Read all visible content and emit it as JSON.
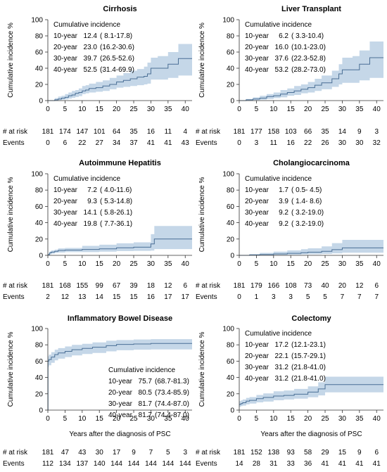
{
  "colors": {
    "band": "#c5d7e8",
    "curve": "#4a6f95"
  },
  "risk_row_label": "# at risk",
  "events_row_label": "Events",
  "chart_data": [
    {
      "type": "line",
      "title": "Cirrhosis",
      "ylabel": "Cumulative incidence %",
      "xlabel": "",
      "xlim": [
        0,
        42
      ],
      "ylim": [
        0,
        100
      ],
      "xticks": [
        "0",
        "5",
        "10",
        "15",
        "20",
        "25",
        "30",
        "35",
        "40"
      ],
      "yticks": [
        "0",
        "20",
        "40",
        "60",
        "80",
        "100"
      ],
      "incidence_header": "Cumulative incidence",
      "incidence_pos": "upper-left",
      "incidence": [
        {
          "label": "10-year",
          "value": "12.4",
          "ci": "( 8.1-17.8)"
        },
        {
          "label": "20-year",
          "value": "23.0",
          "ci": "(16.2-30.6)"
        },
        {
          "label": "30-year",
          "value": "39.7",
          "ci": "(26.5-52.6)"
        },
        {
          "label": "40-year",
          "value": "52.5",
          "ci": "(31.4-69.9)"
        }
      ],
      "at_risk": [
        "181",
        "174",
        "147",
        "101",
        "64",
        "35",
        "16",
        "11",
        "4"
      ],
      "events": [
        "0",
        "6",
        "22",
        "27",
        "34",
        "37",
        "41",
        "41",
        "43"
      ],
      "x": [
        0,
        2,
        3,
        4,
        5,
        6,
        7,
        8,
        9,
        10,
        11,
        12,
        14,
        16,
        18,
        20,
        22,
        24,
        26,
        28,
        29,
        30,
        32,
        35,
        38,
        42
      ],
      "y": [
        0,
        1,
        2,
        3,
        4,
        6,
        7,
        9,
        10,
        12,
        13,
        15,
        16,
        18,
        20,
        23,
        25,
        27,
        29,
        30,
        33,
        40,
        40,
        45,
        52,
        52
      ],
      "lower": [
        0,
        0,
        0.5,
        1,
        1.5,
        2.5,
        3.5,
        4.5,
        5.5,
        8,
        9,
        10,
        11,
        12,
        14,
        16,
        17,
        18,
        19,
        20,
        21,
        26,
        26,
        28,
        31,
        31
      ],
      "upper": [
        0,
        3,
        5,
        6,
        8,
        10,
        12,
        13,
        15,
        18,
        19,
        21,
        23,
        25,
        28,
        31,
        34,
        37,
        39,
        42,
        47,
        53,
        55,
        60,
        70,
        70
      ]
    },
    {
      "type": "line",
      "title": "Liver Transplant",
      "ylabel": "Cumulative incidence %",
      "xlabel": "",
      "xlim": [
        0,
        42
      ],
      "ylim": [
        0,
        100
      ],
      "xticks": [
        "0",
        "5",
        "10",
        "15",
        "20",
        "25",
        "30",
        "35",
        "40"
      ],
      "yticks": [
        "0",
        "20",
        "40",
        "60",
        "80",
        "100"
      ],
      "incidence_header": "Cumulative incidence",
      "incidence_pos": "upper-left",
      "incidence": [
        {
          "label": "10-year",
          "value": "6.2",
          "ci": "( 3.3-10.4)"
        },
        {
          "label": "20-year",
          "value": "16.0",
          "ci": "(10.1-23.0)"
        },
        {
          "label": "30-year",
          "value": "37.6",
          "ci": "(22.3-52.8)"
        },
        {
          "label": "40-year",
          "value": "53.2",
          "ci": "(28.2-73.0)"
        }
      ],
      "at_risk": [
        "181",
        "177",
        "158",
        "103",
        "66",
        "35",
        "14",
        "9",
        "3"
      ],
      "events": [
        "0",
        "3",
        "11",
        "16",
        "22",
        "26",
        "30",
        "30",
        "32"
      ],
      "x": [
        0,
        2,
        4,
        6,
        8,
        10,
        12,
        14,
        16,
        18,
        20,
        22,
        24,
        25,
        27,
        29,
        30,
        33,
        35,
        38,
        42
      ],
      "y": [
        0,
        1,
        2,
        3,
        5,
        6,
        8,
        10,
        12,
        14,
        16,
        19,
        22,
        22,
        27,
        33,
        38,
        38,
        45,
        53,
        53
      ],
      "lower": [
        0,
        0,
        0.5,
        1,
        2,
        3,
        4,
        6,
        7,
        9,
        10,
        12,
        14,
        14,
        17,
        20,
        22,
        22,
        25,
        28,
        28
      ],
      "upper": [
        0,
        2,
        4,
        6,
        8,
        10,
        13,
        15,
        18,
        20,
        23,
        27,
        31,
        31,
        37,
        45,
        53,
        55,
        62,
        73,
        73
      ]
    },
    {
      "type": "line",
      "title": "Autoimmune Hepatitis",
      "ylabel": "Cumulative incidence %",
      "xlabel": "",
      "xlim": [
        0,
        42
      ],
      "ylim": [
        0,
        100
      ],
      "xticks": [
        "0",
        "5",
        "10",
        "15",
        "20",
        "25",
        "30",
        "35",
        "40"
      ],
      "yticks": [
        "0",
        "20",
        "40",
        "60",
        "80",
        "100"
      ],
      "incidence_header": "Cumulative incidence",
      "incidence_pos": "upper-left",
      "incidence": [
        {
          "label": "10-year",
          "value": "7.2",
          "ci": "( 4.0-11.6)"
        },
        {
          "label": "20-year",
          "value": "9.3",
          "ci": "( 5.3-14.8)"
        },
        {
          "label": "30-year",
          "value": "14.1",
          "ci": "( 5.8-26.1)"
        },
        {
          "label": "40-year",
          "value": "19.8",
          "ci": "( 7.7-36.1)"
        }
      ],
      "at_risk": [
        "181",
        "168",
        "155",
        "99",
        "67",
        "39",
        "18",
        "12",
        "6"
      ],
      "events": [
        "2",
        "12",
        "13",
        "14",
        "15",
        "15",
        "16",
        "17",
        "17"
      ],
      "x": [
        0,
        0.5,
        1,
        2,
        3,
        5,
        10,
        15,
        20,
        25,
        30,
        31,
        42
      ],
      "y": [
        1,
        3,
        4,
        5,
        6,
        6.5,
        7.2,
        8,
        9.3,
        10,
        14,
        20,
        20
      ],
      "lower": [
        0,
        1,
        2,
        3,
        3.5,
        4,
        4,
        4.5,
        5.3,
        5.5,
        5.8,
        7.7,
        7.7
      ],
      "upper": [
        2,
        5,
        6,
        7,
        8.5,
        9,
        11.6,
        13,
        14.8,
        16,
        26,
        36,
        36
      ]
    },
    {
      "type": "line",
      "title": "Cholangiocarcinoma",
      "ylabel": "Cumulative incidence %",
      "xlabel": "",
      "xlim": [
        0,
        42
      ],
      "ylim": [
        0,
        100
      ],
      "xticks": [
        "0",
        "5",
        "10",
        "15",
        "20",
        "25",
        "30",
        "35",
        "40"
      ],
      "yticks": [
        "0",
        "20",
        "40",
        "60",
        "80",
        "100"
      ],
      "incidence_header": "Cumulative incidence",
      "incidence_pos": "upper-left",
      "incidence": [
        {
          "label": "10-year",
          "value": "1.7",
          "ci": "( 0.5- 4.5)"
        },
        {
          "label": "20-year",
          "value": "3.9",
          "ci": "( 1.4- 8.6)"
        },
        {
          "label": "30-year",
          "value": "9.2",
          "ci": "( 3.2-19.0)"
        },
        {
          "label": "40-year",
          "value": "9.2",
          "ci": "( 3.2-19.0)"
        }
      ],
      "at_risk": [
        "181",
        "179",
        "166",
        "108",
        "73",
        "40",
        "20",
        "12",
        "6"
      ],
      "events": [
        "0",
        "1",
        "3",
        "3",
        "5",
        "5",
        "7",
        "7",
        "7"
      ],
      "x": [
        0,
        3,
        6,
        10,
        14,
        18,
        20,
        24,
        27,
        30,
        42
      ],
      "y": [
        0,
        0.5,
        1,
        1.7,
        2.5,
        3.2,
        3.9,
        5,
        7,
        9.2,
        9.2
      ],
      "lower": [
        0,
        0,
        0.2,
        0.5,
        0.8,
        1.2,
        1.4,
        1.8,
        2.5,
        3.2,
        3.2
      ],
      "upper": [
        0,
        1.5,
        3,
        4.5,
        6,
        7.5,
        8.6,
        11,
        15,
        19,
        19
      ]
    },
    {
      "type": "line",
      "title": "Inflammatory Bowel Disease",
      "ylabel": "Cumulative incidence %",
      "xlabel": "Years after the diagnosis of PSC",
      "xlim": [
        0,
        42
      ],
      "ylim": [
        0,
        100
      ],
      "xticks": [
        "0",
        "5",
        "10",
        "15",
        "20",
        "25",
        "30",
        "35",
        "40"
      ],
      "yticks": [
        "0",
        "20",
        "40",
        "60",
        "80",
        "100"
      ],
      "incidence_header": "Cumulative incidence",
      "incidence_pos": "lower-right",
      "incidence": [
        {
          "label": "10-year",
          "value": "75.7",
          "ci": "(68.7-81.3)"
        },
        {
          "label": "20-year",
          "value": "80.5",
          "ci": "(73.4-85.9)"
        },
        {
          "label": "30-year",
          "value": "81.7",
          "ci": "(74.4-87.0)"
        },
        {
          "label": "40-year",
          "value": "81.7",
          "ci": "(74.4-87.0)"
        }
      ],
      "at_risk": [
        "181",
        "47",
        "43",
        "30",
        "17",
        "9",
        "7",
        "5",
        "3"
      ],
      "events": [
        "112",
        "134",
        "137",
        "140",
        "144",
        "144",
        "144",
        "144",
        "144"
      ],
      "x": [
        0,
        0.05,
        0.3,
        1,
        2,
        3,
        5,
        7,
        10,
        13,
        17,
        20,
        25,
        30,
        42
      ],
      "y": [
        0,
        60,
        62,
        65,
        68,
        70,
        72,
        74,
        75.7,
        77,
        79,
        80.5,
        81,
        81.7,
        81.7
      ],
      "lower": [
        0,
        53,
        55,
        58,
        61,
        63,
        65,
        67,
        68.7,
        70,
        72,
        73.4,
        74,
        74.4,
        74.4
      ],
      "upper": [
        0,
        66,
        68,
        71,
        74,
        76,
        78,
        80,
        81.3,
        83,
        85,
        85.9,
        86.5,
        87,
        87
      ]
    },
    {
      "type": "line",
      "title": "Colectomy",
      "ylabel": "Cumulative incidence %",
      "xlabel": "Years after the diagnosis of PSC",
      "xlim": [
        0,
        42
      ],
      "ylim": [
        0,
        100
      ],
      "xticks": [
        "0",
        "5",
        "10",
        "15",
        "20",
        "25",
        "30",
        "35",
        "40"
      ],
      "yticks": [
        "0",
        "20",
        "40",
        "60",
        "80",
        "100"
      ],
      "incidence_header": "Cumulative incidence",
      "incidence_pos": "upper-left",
      "incidence": [
        {
          "label": "10-year",
          "value": "17.2",
          "ci": "(12.1-23.1)"
        },
        {
          "label": "20-year",
          "value": "22.1",
          "ci": "(15.7-29.1)"
        },
        {
          "label": "30-year",
          "value": "31.2",
          "ci": "(21.8-41.0)"
        },
        {
          "label": "40-year",
          "value": "31.2",
          "ci": "(21.8-41.0)"
        }
      ],
      "at_risk": [
        "181",
        "152",
        "138",
        "93",
        "58",
        "29",
        "15",
        "9",
        "6"
      ],
      "events": [
        "14",
        "28",
        "31",
        "33",
        "36",
        "41",
        "41",
        "41",
        "41"
      ],
      "x": [
        0,
        0.5,
        1,
        2,
        3,
        5,
        7,
        10,
        13,
        16,
        20,
        23,
        25,
        42
      ],
      "y": [
        7,
        8,
        9,
        11,
        12,
        14,
        15.5,
        17.2,
        18,
        19.5,
        22.1,
        26,
        31.2,
        31.2
      ],
      "lower": [
        4,
        5,
        5.5,
        7,
        8,
        9.5,
        10.5,
        12.1,
        13,
        14,
        15.7,
        18,
        21.8,
        21.8
      ],
      "upper": [
        11,
        12,
        13,
        15,
        16,
        18.5,
        20.5,
        23.1,
        24,
        26,
        29.1,
        34,
        41,
        41
      ]
    }
  ]
}
